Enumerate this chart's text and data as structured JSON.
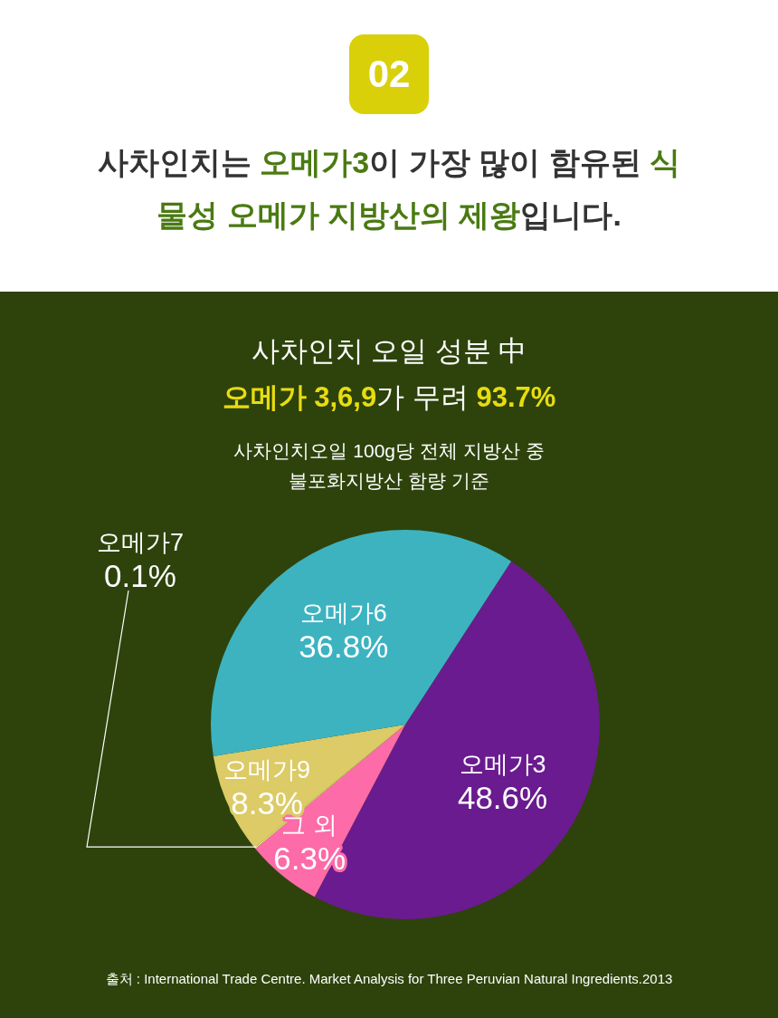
{
  "chart_data": {
    "type": "pie",
    "title": "사차인치는 **오메가3**이 가장 많이 함유된 **식물성 오메가 지방산의 제왕**입니다.",
    "subtitle": "사차인치 오일 성분 中",
    "categories": [
      "오메가3",
      "그 외",
      "오메가7",
      "오메가9",
      "오메가6"
    ],
    "values": [
      48.6,
      6.3,
      0.1,
      8.3,
      36.8
    ],
    "colors": [
      "#6a1b8f",
      "#fd6ba8",
      "#f7f77a",
      "#dccb66",
      "#3db3c0"
    ],
    "value_labels": [
      "48.6%",
      "6.3%",
      "0.1%",
      "8.3%",
      "36.8%"
    ],
    "annotations": [
      "02",
      "**오메가 3,6,9**가 무려 **93.7%**",
      "사차인치오일 100g당 전체 지방산 중",
      "불포화지방산 함량 기준",
      "출처 : International Trade Centre. Market Analysis for Three Peruvian Natural Ingredients.2013"
    ]
  }
}
